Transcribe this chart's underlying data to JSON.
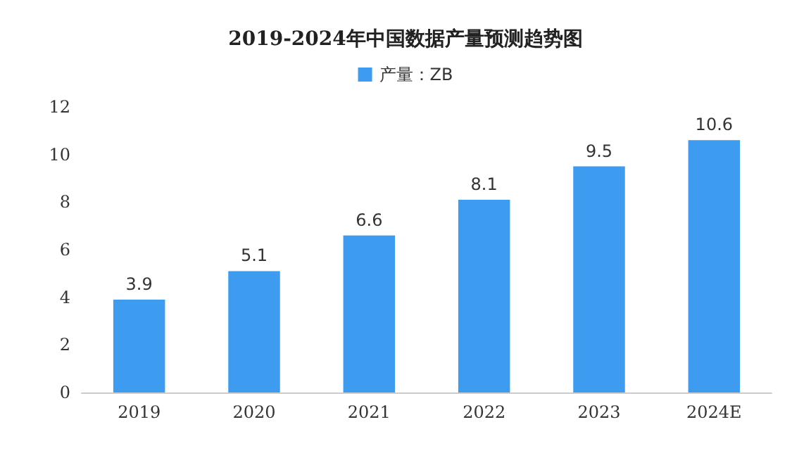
{
  "chart_data": {
    "type": "bar",
    "title": "2019-2024年中国数据产量预测趋势图",
    "categories": [
      "2019",
      "2020",
      "2021",
      "2022",
      "2023",
      "2024E"
    ],
    "series": [
      {
        "name": "产量：ZB",
        "color": "#3d9cf0",
        "values": [
          3.9,
          5.1,
          6.6,
          8.1,
          9.5,
          10.6
        ]
      }
    ],
    "ylim": [
      0,
      12
    ],
    "yticks": [
      0,
      2,
      4,
      6,
      8,
      10,
      12
    ],
    "grid": false,
    "legend": "top",
    "data_labels": true
  }
}
